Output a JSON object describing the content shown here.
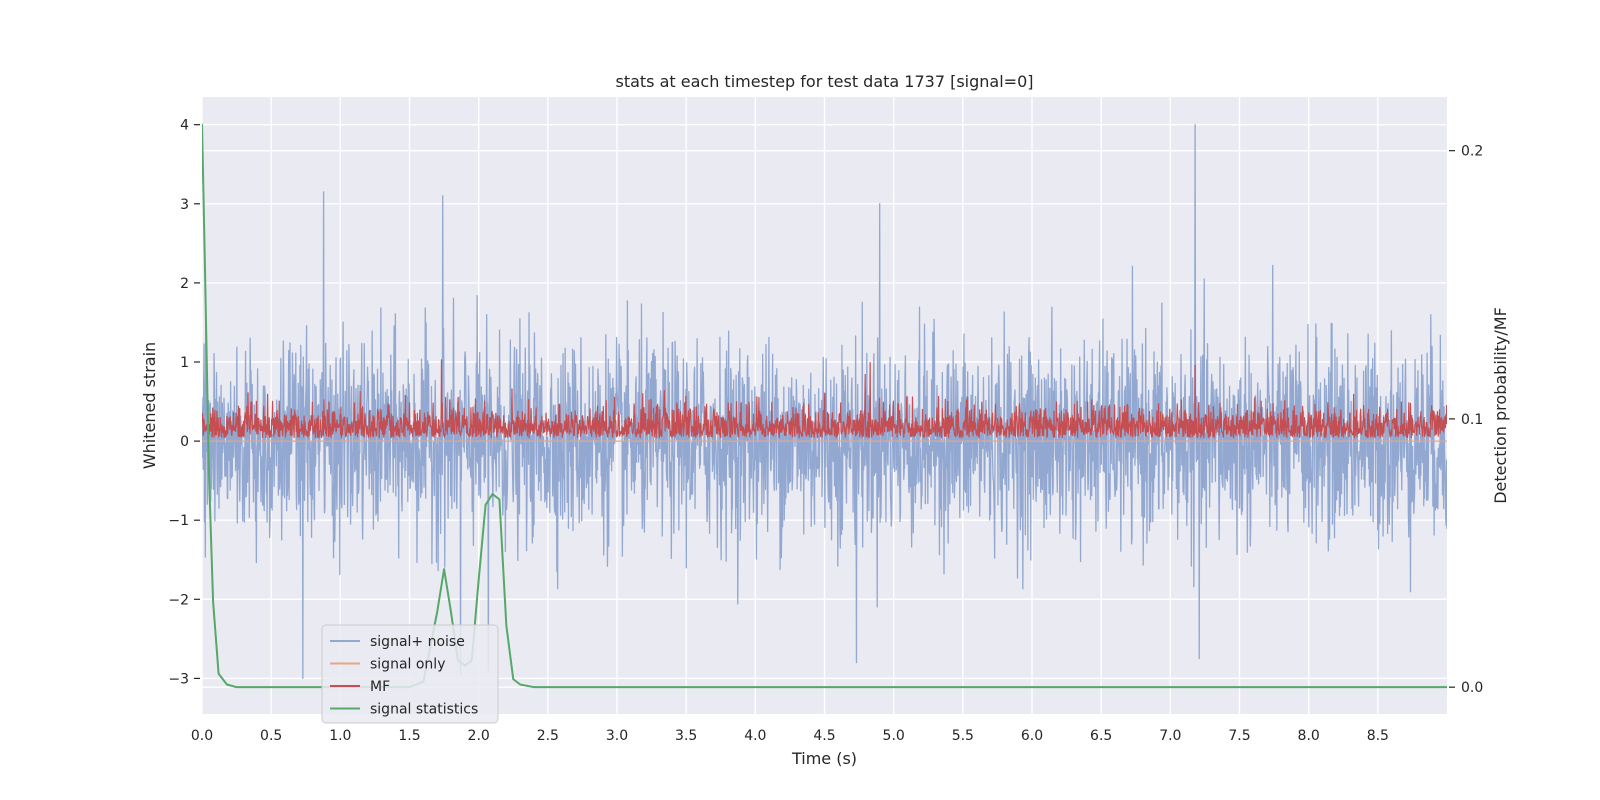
{
  "chart_data": {
    "type": "line",
    "title": "stats at each timestep for test data 1737 [signal=0]",
    "xlabel": "Time (s)",
    "ylabel": "Whitened strain",
    "y2label": "Detection probability/MF",
    "xlim": [
      0.0,
      9.0
    ],
    "ylim": [
      -3.45,
      4.35
    ],
    "y2lim": [
      -0.01,
      0.22
    ],
    "x_ticks": [
      "0.0",
      "0.5",
      "1.0",
      "1.5",
      "2.0",
      "2.5",
      "3.0",
      "3.5",
      "4.0",
      "4.5",
      "5.0",
      "5.5",
      "6.0",
      "6.5",
      "7.0",
      "7.5",
      "8.0",
      "8.5"
    ],
    "y_ticks": [
      "−3",
      "−2",
      "−1",
      "0",
      "1",
      "2",
      "3",
      "4"
    ],
    "y2_ticks": [
      "0.0",
      "0.1",
      "0.2"
    ],
    "grid": true,
    "legend_position": "lower-left",
    "series": [
      {
        "name": "signal+ noise",
        "color": "#92a8d1",
        "axis": "left",
        "description_values": {
          "mean": 0.0,
          "typical_range": [
            -1.6,
            1.6
          ],
          "peaks": [
            [
              0.88,
              3.15
            ],
            [
              1.74,
              3.1
            ],
            [
              7.18,
              4.0
            ],
            [
              4.9,
              3.0
            ],
            [
              0.73,
              -3.0
            ],
            [
              1.87,
              -2.95
            ],
            [
              4.73,
              -2.8
            ],
            [
              7.21,
              -2.75
            ],
            [
              2.07,
              -2.9
            ]
          ]
        }
      },
      {
        "name": "signal only",
        "color": "#e8a485",
        "axis": "left",
        "x": [
          0.0,
          9.0
        ],
        "values": [
          0.0,
          0.0
        ]
      },
      {
        "name": "MF",
        "color": "#c44e52",
        "axis": "right",
        "description_values": {
          "baseline": 0.093,
          "typical_range": [
            0.093,
            0.115
          ],
          "peaks": [
            [
              1.73,
              0.122
            ],
            [
              4.83,
              0.121
            ],
            [
              7.18,
              0.12
            ]
          ]
        }
      },
      {
        "name": "signal statistics",
        "color": "#55a868",
        "axis": "right",
        "x": [
          0.0,
          0.02,
          0.05,
          0.08,
          0.12,
          0.18,
          0.25,
          0.35,
          0.5,
          0.8,
          1.0,
          1.3,
          1.5,
          1.6,
          1.65,
          1.7,
          1.75,
          1.8,
          1.85,
          1.9,
          1.95,
          2.0,
          2.05,
          2.1,
          2.15,
          2.2,
          2.25,
          2.3,
          2.4,
          3.0,
          4.0,
          5.0,
          6.0,
          7.0,
          8.0,
          9.0
        ],
        "values": [
          0.21,
          0.16,
          0.08,
          0.032,
          0.005,
          0.001,
          0.0,
          0.0,
          0.0,
          0.0,
          0.0,
          0.0,
          0.0,
          0.002,
          0.015,
          0.028,
          0.044,
          0.028,
          0.01,
          0.008,
          0.01,
          0.04,
          0.068,
          0.072,
          0.07,
          0.023,
          0.003,
          0.001,
          0.0,
          0.0,
          0.0,
          0.0,
          0.0,
          0.0,
          0.0,
          0.0
        ]
      }
    ]
  }
}
